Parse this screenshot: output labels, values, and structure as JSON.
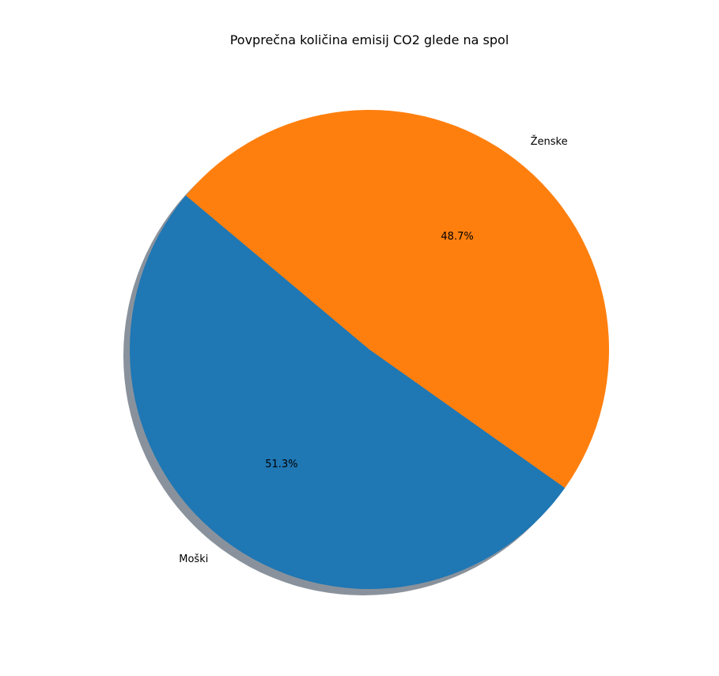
{
  "chart_data": {
    "type": "pie",
    "title": "Povprečna količina emisij CO2 glede na spol",
    "categories": [
      "Moški",
      "Ženske"
    ],
    "values": [
      51.3,
      48.7
    ],
    "percent_labels": [
      "51.3%",
      "48.7%"
    ],
    "colors": [
      "#1f77b4",
      "#ff7f0e"
    ],
    "start_angle_deg": 140,
    "shadow": true,
    "legend": "none"
  }
}
